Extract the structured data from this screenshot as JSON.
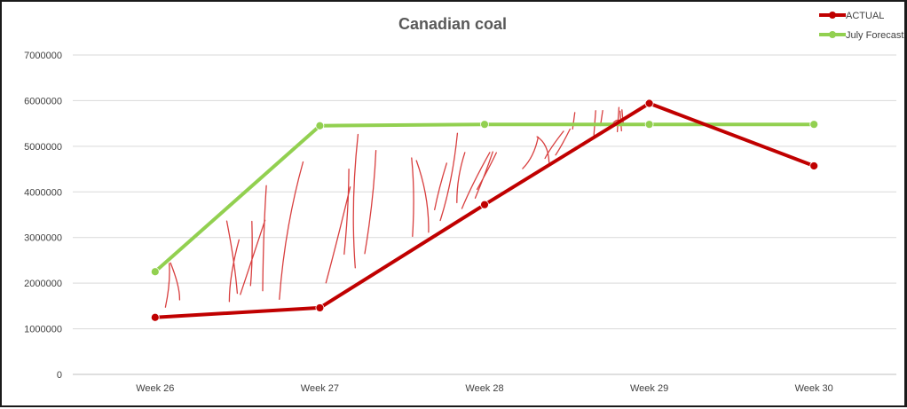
{
  "chart_data": {
    "type": "line",
    "title": "Canadian coal",
    "xlabel": "",
    "ylabel": "",
    "categories": [
      "Week 26",
      "Week 27",
      "Week 28",
      "Week 29",
      "Week 30"
    ],
    "ylim": [
      0,
      7000000
    ],
    "yticks": [
      "0",
      "1000000",
      "2000000",
      "3000000",
      "4000000",
      "5000000",
      "6000000",
      "7000000"
    ],
    "grid": true,
    "legend_position": "top-right",
    "series": [
      {
        "name": "ACTUAL",
        "values": [
          1250000,
          1460000,
          3720000,
          5940000,
          4570000
        ],
        "color": "#c00000"
      },
      {
        "name": "July Forecast",
        "values": [
          2250000,
          5450000,
          5480000,
          5480000,
          5480000
        ],
        "color": "#92d050"
      }
    ],
    "annotation": {
      "type": "hand-drawn hatching",
      "color": "#d42a2a"
    }
  }
}
